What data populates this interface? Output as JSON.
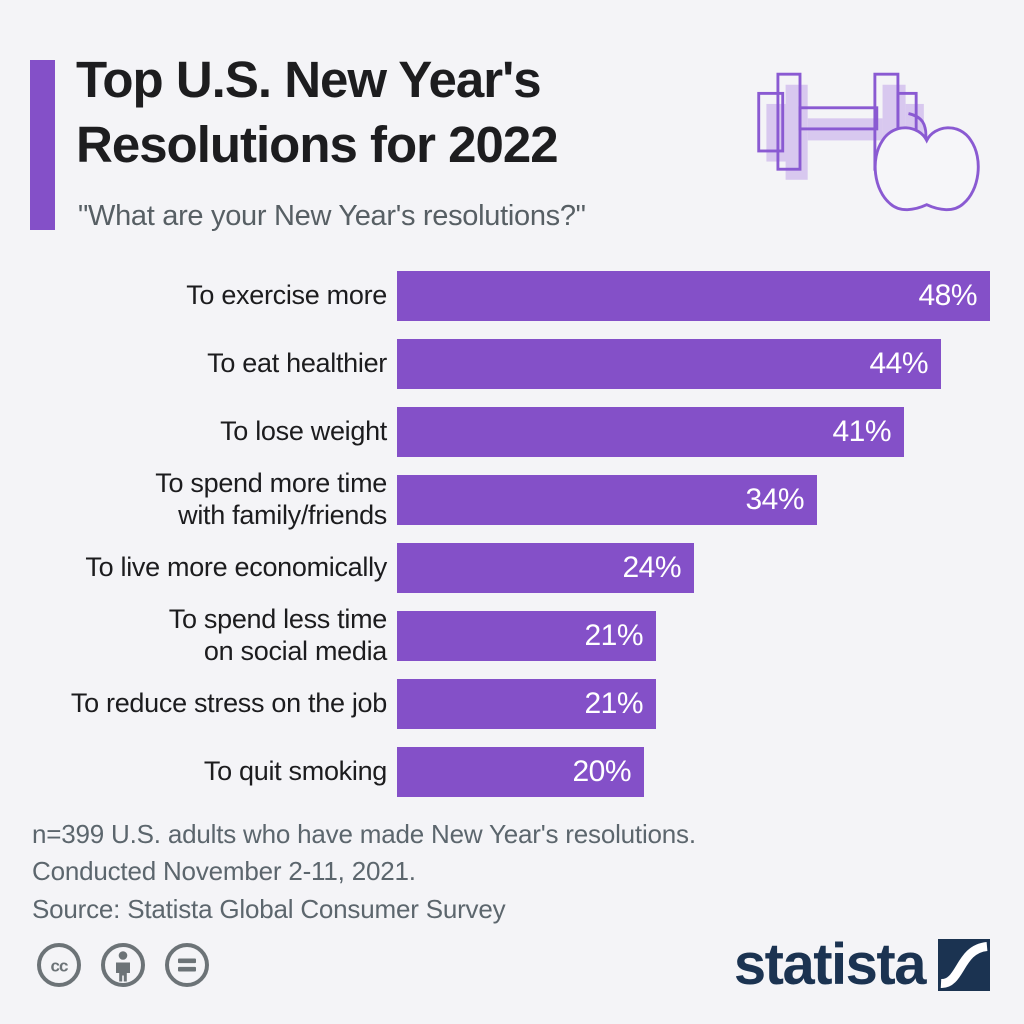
{
  "page": {
    "background": "#f4f4f7"
  },
  "header": {
    "title_line1": "Top U.S. New Year's",
    "title_line2": "Resolutions for 2022",
    "subtitle": "\"What are your New Year's resolutions?\"",
    "accent_color": "#8450c8"
  },
  "hero_icon": {
    "name": "dumbbell-and-apple",
    "outline_color": "#8a5ad2",
    "shadow_color": "#d8c8ef"
  },
  "chart_data": {
    "type": "bar",
    "orientation": "horizontal",
    "categories": [
      [
        "To exercise more"
      ],
      [
        "To eat healthier"
      ],
      [
        "To lose weight"
      ],
      [
        "To spend more time",
        "with family/friends"
      ],
      [
        "To live more economically"
      ],
      [
        "To spend less time",
        "on social media"
      ],
      [
        "To reduce stress on the job"
      ],
      [
        "To quit smoking"
      ]
    ],
    "values": [
      48,
      44,
      41,
      34,
      24,
      21,
      21,
      20
    ],
    "value_labels": [
      "48%",
      "44%",
      "41%",
      "34%",
      "24%",
      "21%",
      "21%",
      "20%"
    ],
    "max_value": 48,
    "bar_color": "#8450c8",
    "value_label_color": "#ffffff",
    "grid": false,
    "legend": false,
    "xlim": [
      0,
      48
    ]
  },
  "footer": {
    "note_line1": "n=399 U.S. adults who have made New Year's resolutions.",
    "note_line2": "Conducted November 2-11, 2021.",
    "source": "Source: Statista Global Consumer Survey"
  },
  "license": {
    "icon_color": "#6c7377",
    "icons": [
      "creative-commons",
      "attribution",
      "no-derivatives"
    ],
    "cc_glyph": "cc"
  },
  "branding": {
    "logo_text": "statista",
    "logo_color": "#1b3351"
  }
}
